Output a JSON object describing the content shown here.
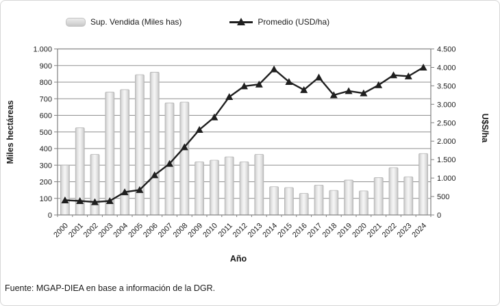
{
  "figure": {
    "legend": [
      {
        "label": "Sup. Vendida (Miles has)",
        "type": "bar"
      },
      {
        "label": "Promedio (USD/ha)",
        "type": "line"
      }
    ],
    "footer": "Fuente: MGAP-DIEA en base a información de la DGR."
  },
  "chart_data": {
    "type": "bar+line combo",
    "categories": [
      "2000",
      "2001",
      "2002",
      "2003",
      "2004",
      "2005",
      "2006",
      "2007",
      "2008",
      "2009",
      "2010",
      "2011",
      "2012",
      "2013",
      "2014",
      "2015",
      "2016",
      "2017",
      "2018",
      "2019",
      "2020",
      "2021",
      "2022",
      "2023",
      "2024"
    ],
    "series": [
      {
        "name": "Sup. Vendida (Miles has)",
        "type": "bar",
        "axis": "left",
        "values": [
          300,
          525,
          365,
          740,
          755,
          845,
          860,
          675,
          680,
          320,
          330,
          350,
          320,
          365,
          170,
          165,
          130,
          180,
          148,
          210,
          145,
          225,
          285,
          230,
          370
        ]
      },
      {
        "name": "Promedio (USD/ha)",
        "type": "line",
        "axis": "right",
        "values": [
          400,
          380,
          350,
          380,
          620,
          680,
          1080,
          1390,
          1840,
          2310,
          2650,
          3200,
          3490,
          3540,
          3950,
          3610,
          3390,
          3730,
          3250,
          3360,
          3300,
          3520,
          3790,
          3760,
          4000
        ]
      }
    ],
    "xlabel": "Año",
    "ylabel_left": "Miles hectáreas",
    "ylabel_right": "U$S/ha",
    "ylim_left": [
      0,
      1000
    ],
    "ylim_right": [
      0,
      4500
    ],
    "ytick_labels_left": [
      "0",
      "100",
      "200",
      "300",
      "400",
      "500",
      "600",
      "700",
      "800",
      "900",
      "1.000"
    ],
    "ytick_labels_right": [
      "0",
      "500",
      "1.000",
      "1.500",
      "2.000",
      "2.500",
      "3.000",
      "3.500",
      "4.000",
      "4.500"
    ],
    "grid": true,
    "legend_position": "top",
    "colors": {
      "bar_edge": "#c4c4c4",
      "bar_mid": "#f5f5f5",
      "bar_stroke": "#b5b5b5",
      "line": "#1f1f1f",
      "grid": "#8f8f8f",
      "plot_border": "#808080",
      "text": "#1a1a1a"
    }
  }
}
